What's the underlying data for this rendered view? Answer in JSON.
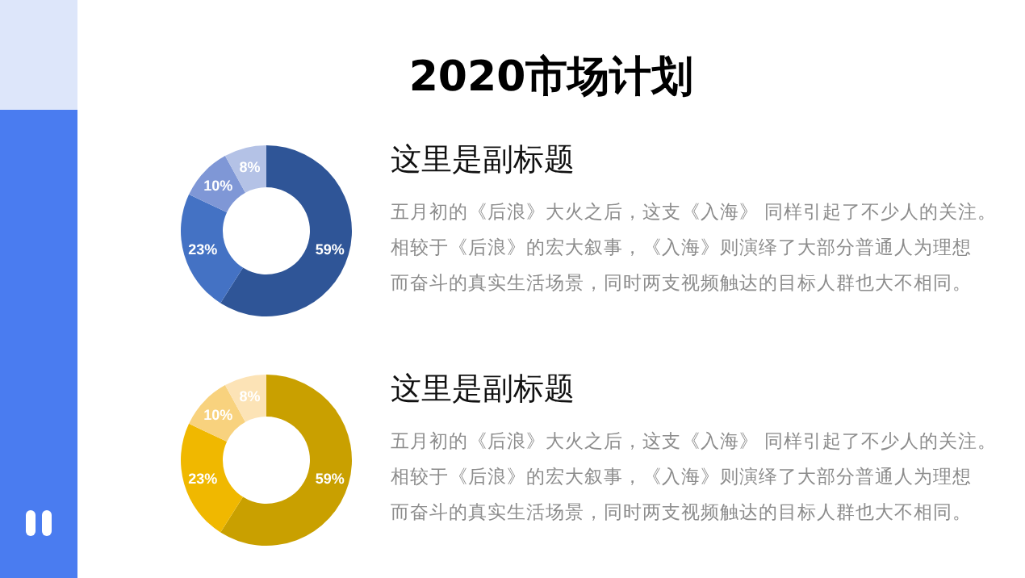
{
  "chart_data": [
    {
      "type": "donut",
      "title": "2020市场计划",
      "subtitle": "这里是副标题",
      "categories": [
        null,
        null,
        null,
        null
      ],
      "values": [
        59,
        23,
        10,
        8
      ],
      "value_labels": [
        "59%",
        "23%",
        "10%",
        "8%"
      ],
      "colors": [
        "#2f5597",
        "#4472c4",
        "#7f97d6",
        "#b4c2e6"
      ],
      "annotations": [
        "五月初的《后浪》大火之后，这支《入海》 同样引起了不少人的关注。",
        "相较于《后浪》的宏大叙事，《入海》则演绎了大部分普通人为理想",
        "而奋斗的真实生活场景，同时两支视频触达的目标人群也大不相同。"
      ]
    },
    {
      "type": "donut",
      "subtitle": "这里是副标题",
      "categories": [
        null,
        null,
        null,
        null
      ],
      "values": [
        59,
        23,
        10,
        8
      ],
      "value_labels": [
        "59%",
        "23%",
        "10%",
        "8%"
      ],
      "colors": [
        "#c9a000",
        "#f0b800",
        "#f8d27e",
        "#fce3b6"
      ],
      "annotations": [
        "五月初的《后浪》大火之后，这支《入海》 同样引起了不少人的关注。",
        "相较于《后浪》的宏大叙事，《入海》则演绎了大部分普通人为理想",
        "而奋斗的真实生活场景，同时两支视频触达的目标人群也大不相同。"
      ]
    }
  ]
}
